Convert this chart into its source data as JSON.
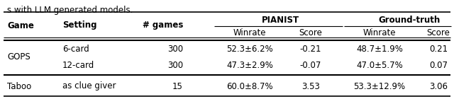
{
  "title_text": "s with LLM generated models.",
  "rows": [
    [
      "GOPS",
      "6-card",
      "300",
      "52.3±6.2%",
      "-0.21",
      "48.7±1.9%",
      "0.21"
    ],
    [
      "",
      "12-card",
      "300",
      "47.3±2.9%",
      "-0.07",
      "47.0±5.7%",
      "0.07"
    ],
    [
      "Taboo",
      "as clue giver",
      "15",
      "60.0±8.7%",
      "3.53",
      "53.3±12.9%",
      "3.06"
    ]
  ],
  "background": "#ffffff",
  "text_color": "#000000",
  "line_color": "#000000",
  "font_size": 8.5,
  "bold_font_size": 8.5
}
